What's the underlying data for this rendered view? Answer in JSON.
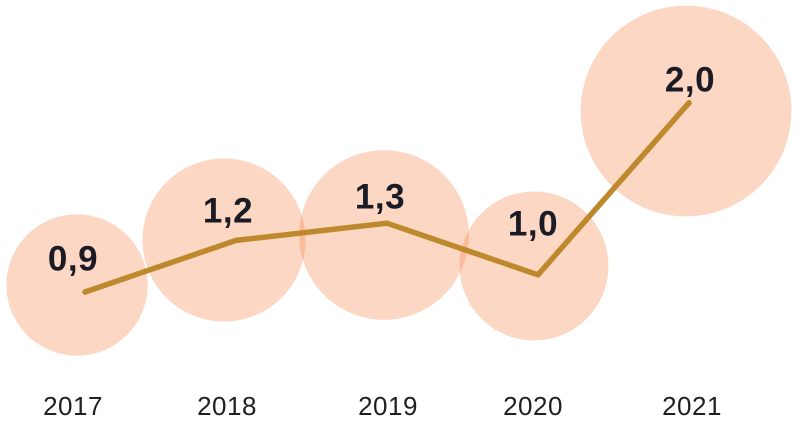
{
  "chart_data": {
    "type": "line",
    "subtype": "line-with-area-proportional-bubble-markers",
    "categories": [
      "2017",
      "2018",
      "2019",
      "2020",
      "2021"
    ],
    "values": [
      0.9,
      1.2,
      1.3,
      1.0,
      2.0
    ],
    "value_labels": [
      "0,9",
      "1,2",
      "1,3",
      "1,0",
      "2,0"
    ],
    "decimal_separator": ",",
    "title": "",
    "xlabel": "",
    "ylabel": "",
    "ylim": [
      0,
      2.2
    ],
    "grid": false,
    "legend": false,
    "axes_visible": false,
    "colors": {
      "bubble_fill": "#F47B3C",
      "bubble_opacity": 0.3,
      "line": "#BE892D",
      "value_label_text": "#1B1B26",
      "axis_label_text": "#202024",
      "background": "#FFFFFF"
    }
  }
}
